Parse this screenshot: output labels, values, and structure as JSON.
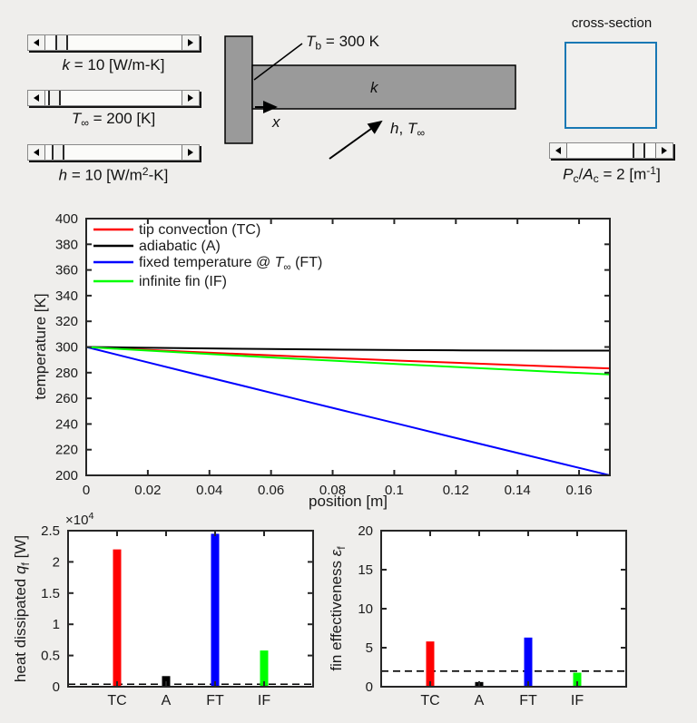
{
  "colors": {
    "background": "#efeeec",
    "axis": "#262626",
    "text": "#1a1a1a",
    "fin_gray": "#9a9a9a",
    "cross_section_blue": "#1878b4",
    "series_red": "#ff0000",
    "series_black": "#000000",
    "series_blue": "#0000ff",
    "series_green": "#00ff00"
  },
  "controls": {
    "sliders": [
      {
        "id": "k",
        "value": 10,
        "thumb_pos": 0.08,
        "label": [
          {
            "t": "k",
            "s": "i"
          },
          {
            "t": " = 10 [W/m-K]"
          }
        ]
      },
      {
        "id": "Tinf",
        "value": 200,
        "thumb_pos": 0.02,
        "label": [
          {
            "t": "T",
            "s": "i"
          },
          {
            "t": "∞",
            "s": "sub"
          },
          {
            "t": " = 200 [K]"
          }
        ]
      },
      {
        "id": "h",
        "value": 10,
        "thumb_pos": 0.05,
        "label": [
          {
            "t": "h",
            "s": "i"
          },
          {
            "t": " = 10 [W/m"
          },
          {
            "t": "2",
            "s": "sup"
          },
          {
            "t": "-K]"
          }
        ]
      }
    ]
  },
  "cross_section": {
    "title": "cross-section",
    "slider_thumb_pos": 0.87,
    "label": [
      {
        "t": "P",
        "s": "i"
      },
      {
        "t": "c",
        "s": "sub"
      },
      {
        "t": "/"
      },
      {
        "t": "A",
        "s": "i"
      },
      {
        "t": "c",
        "s": "sub"
      },
      {
        "t": " = 2 [m"
      },
      {
        "t": "-1",
        "s": "sup"
      },
      {
        "t": "]"
      }
    ]
  },
  "diagram": {
    "tb_label": [
      {
        "t": "T",
        "s": "i"
      },
      {
        "t": "b",
        "s": "sub"
      },
      {
        "t": " = 300 K"
      }
    ],
    "k_label": [
      {
        "t": "k",
        "s": "i"
      }
    ],
    "x_label": [
      {
        "t": "x",
        "s": "i"
      }
    ],
    "ht_label": [
      {
        "t": "h",
        "s": "i"
      },
      {
        "t": ", "
      },
      {
        "t": "T",
        "s": "i"
      },
      {
        "t": "∞",
        "s": "sub"
      }
    ]
  },
  "chart_data": [
    {
      "type": "line",
      "xlabel": "position [m]",
      "ylabel": [
        {
          "t": "temperature [K]"
        }
      ],
      "xlim": [
        0,
        0.17
      ],
      "ylim": [
        200,
        400
      ],
      "xticks": [
        0,
        0.02,
        0.04,
        0.06,
        0.08,
        0.1,
        0.12,
        0.14,
        0.16
      ],
      "xtick_labels": [
        "0",
        "0.02",
        "0.04",
        "0.06",
        "0.08",
        "0.1",
        "0.12",
        "0.14",
        "0.16"
      ],
      "yticks": [
        200,
        220,
        240,
        260,
        280,
        300,
        320,
        340,
        360,
        380,
        400
      ],
      "legend_position": "top-left",
      "grid": false,
      "x": [
        0,
        0.017,
        0.034,
        0.051,
        0.068,
        0.085,
        0.102,
        0.119,
        0.136,
        0.153,
        0.17
      ],
      "series": [
        {
          "name": "tip-convection",
          "color": "#ff0000",
          "label": [
            {
              "t": "tip convection (TC)"
            }
          ],
          "values": [
            300,
            298.1,
            296.2,
            294.4,
            292.7,
            291.0,
            289.3,
            287.8,
            286.2,
            284.7,
            283.3
          ]
        },
        {
          "name": "adiabatic",
          "color": "#000000",
          "label": [
            {
              "t": "adiabatic (A)"
            }
          ],
          "values": [
            300,
            299.5,
            299.0,
            298.6,
            298.2,
            297.9,
            297.6,
            297.4,
            297.3,
            297.2,
            297.2
          ]
        },
        {
          "name": "fixed-temperature",
          "color": "#0000ff",
          "label": [
            {
              "t": "fixed temperature @ "
            },
            {
              "t": "T",
              "s": "i"
            },
            {
              "t": "∞",
              "s": "sub"
            },
            {
              "t": " (FT)"
            }
          ],
          "values": [
            300,
            289.8,
            279.7,
            269.7,
            259.6,
            249.6,
            239.7,
            229.7,
            219.8,
            209.9,
            200
          ]
        },
        {
          "name": "infinite-fin",
          "color": "#00ff00",
          "label": [
            {
              "t": "infinite fin (IF)"
            }
          ],
          "values": [
            300,
            297.6,
            295.3,
            293.0,
            290.8,
            288.7,
            286.6,
            284.5,
            282.5,
            280.5,
            278.6
          ]
        }
      ]
    },
    {
      "type": "bar",
      "ylabel": [
        {
          "t": "heat dissipated "
        },
        {
          "t": "q",
          "s": "i"
        },
        {
          "t": "f",
          "s": "sub"
        },
        {
          "t": " [W]"
        }
      ],
      "multiplier": [
        {
          "t": "×10"
        },
        {
          "t": "4",
          "s": "sup"
        }
      ],
      "categories": [
        "TC",
        "A",
        "FT",
        "IF"
      ],
      "values": [
        22000,
        1700,
        24500,
        5800
      ],
      "bar_colors": [
        "#ff0000",
        "#000000",
        "#0000ff",
        "#00ff00"
      ],
      "ylim": [
        0,
        25000
      ],
      "yticks": [
        0,
        5000,
        10000,
        15000,
        20000,
        25000
      ],
      "ytick_labels": [
        "0",
        "0.5",
        "1",
        "1.5",
        "2",
        "2.5"
      ],
      "dashed_y": 400
    },
    {
      "type": "bar",
      "ylabel": [
        {
          "t": "fin effectiveness "
        },
        {
          "t": "ε",
          "s": "i"
        },
        {
          "t": "f",
          "s": "sub"
        }
      ],
      "categories": [
        "TC",
        "A",
        "FT",
        "IF"
      ],
      "values": [
        5.8,
        0.6,
        6.3,
        1.8
      ],
      "bar_colors": [
        "#ff0000",
        "#000000",
        "#0000ff",
        "#00ff00"
      ],
      "ylim": [
        0,
        20
      ],
      "yticks": [
        0,
        5,
        10,
        15,
        20
      ],
      "ytick_labels": [
        "0",
        "5",
        "10",
        "15",
        "20"
      ],
      "dashed_y": 2
    }
  ]
}
